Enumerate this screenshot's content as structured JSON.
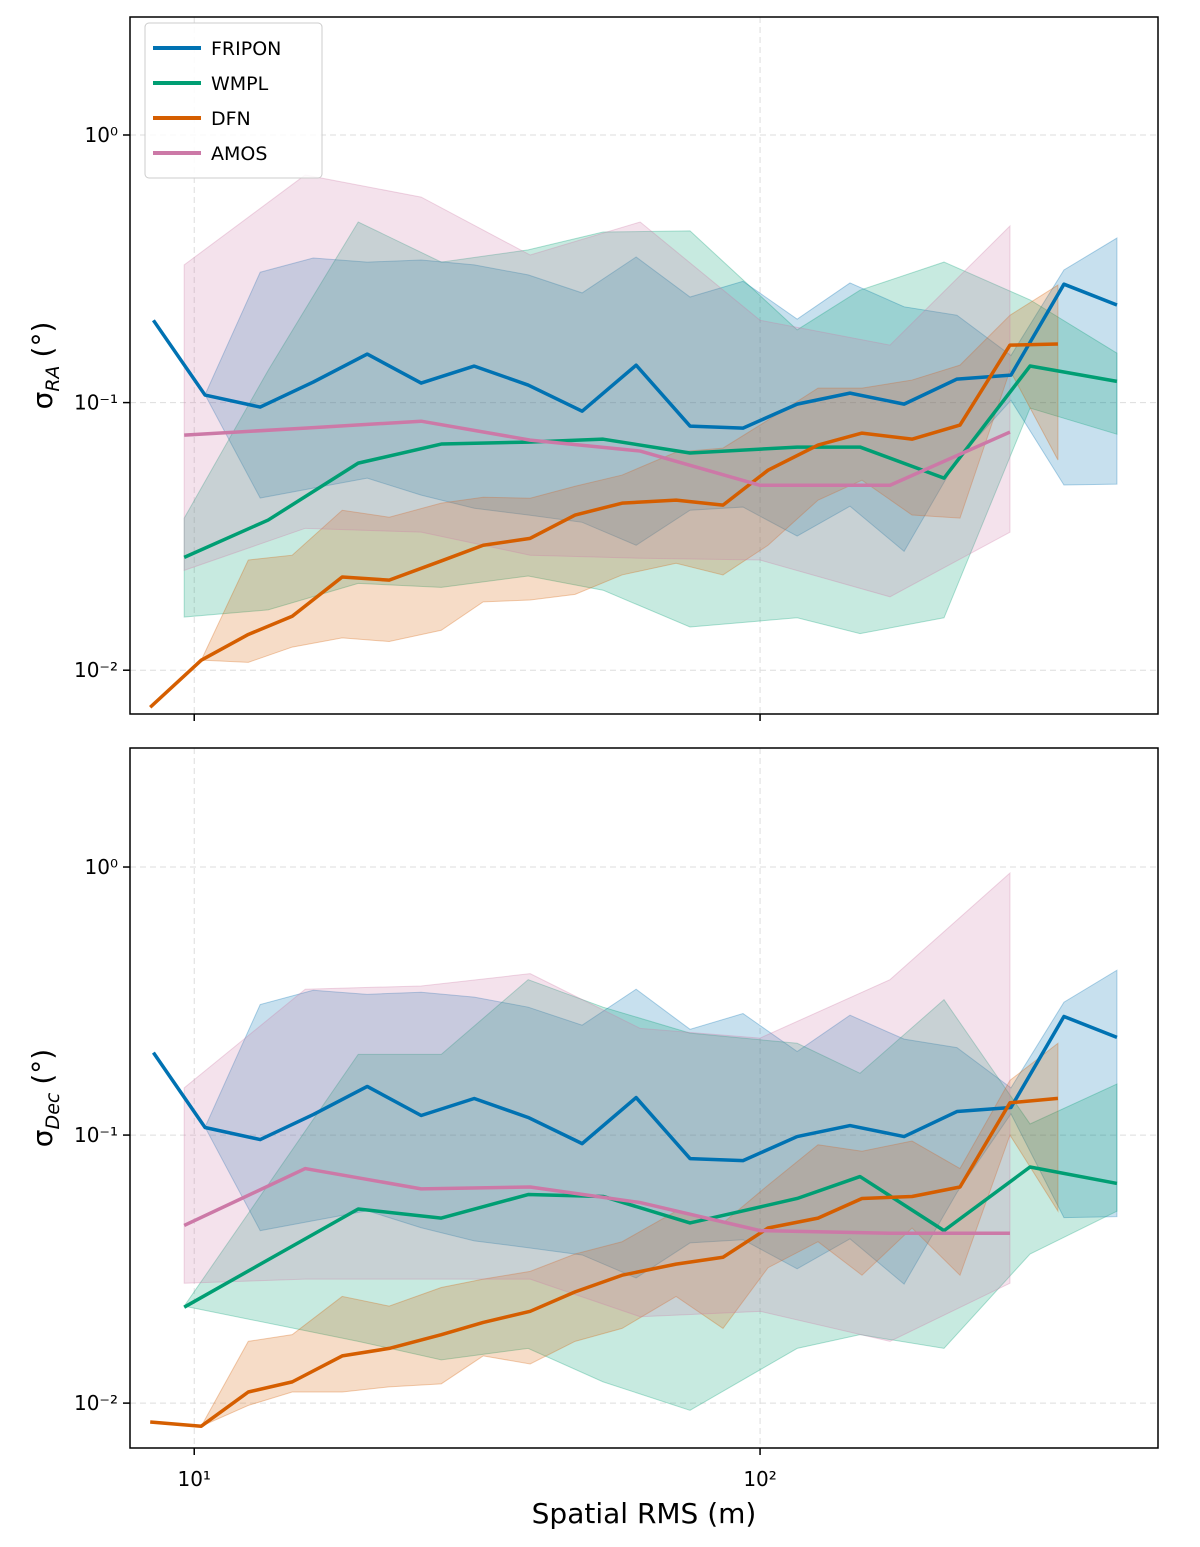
{
  "chart_data": [
    {
      "type": "line",
      "log": true,
      "grid": true,
      "legend": "upper left",
      "ylabel": {
        "symbol": "σ",
        "subscript": "RA",
        "unit": "(°)"
      },
      "xlim": [
        7.7,
        505
      ],
      "ylim": [
        0.00686,
        2.76
      ],
      "xticks": [
        10,
        100
      ],
      "yticks": [
        {
          "value": 0.01,
          "label": "10⁻²"
        },
        {
          "value": 0.1,
          "label": "10⁻¹"
        },
        {
          "value": 1,
          "label": "10⁰"
        }
      ],
      "series": [
        {
          "name": "FRIPON",
          "color": "#0072b2",
          "x": [
            8.47,
            10.45,
            13.08,
            16.23,
            20.22,
            25.18,
            31.25,
            38.92,
            48.48,
            60.39,
            75.2,
            93.3,
            116.3,
            144.2,
            179.7,
            222.8,
            277.6,
            344.4,
            427.3
          ],
          "values": [
            0.203,
            0.1067,
            0.0962,
            0.1193,
            0.1518,
            0.1183,
            0.1369,
            0.1163,
            0.0929,
            0.138,
            0.0817,
            0.0803,
            0.0987,
            0.1085,
            0.0987,
            0.1224,
            0.1267,
            0.277,
            0.2315
          ],
          "upper": [
            0.203,
            0.107,
            0.307,
            0.347,
            0.335,
            0.341,
            0.327,
            0.3,
            0.257,
            0.35,
            0.248,
            0.284,
            0.205,
            0.28,
            0.228,
            0.212,
            0.15,
            0.313,
            0.412
          ],
          "lower": [
            0.203,
            0.107,
            0.044,
            0.0479,
            0.0522,
            0.0451,
            0.0403,
            0.038,
            0.0357,
            0.0293,
            0.0396,
            0.0407,
            0.0317,
            0.041,
            0.0278,
            0.061,
            0.102,
            0.0492,
            0.0496
          ]
        },
        {
          "name": "WMPL",
          "color": "#009e73",
          "x": [
            9.6,
            13.51,
            19.49,
            27.33,
            38.92,
            52.8,
            75.2,
            116.3,
            150.2,
            211.4,
            300,
            427.3
          ],
          "values": [
            0.0264,
            0.0364,
            0.0594,
            0.07,
            0.0712,
            0.073,
            0.0648,
            0.0682,
            0.0682,
            0.0522,
            0.137,
            0.12
          ],
          "upper": [
            0.037,
            0.132,
            0.473,
            0.335,
            0.372,
            0.434,
            0.438,
            0.187,
            0.263,
            0.335,
            0.242,
            0.153
          ],
          "lower": [
            0.0158,
            0.0168,
            0.0211,
            0.0204,
            0.0225,
            0.0199,
            0.0145,
            0.0157,
            0.0137,
            0.0157,
            0.0954,
            0.0762
          ]
        },
        {
          "name": "DFN",
          "color": "#d55e00",
          "x": [
            8.36,
            10.29,
            12.46,
            14.9,
            18.26,
            22.11,
            27.33,
            32.41,
            39.24,
            47.11,
            57.04,
            71.06,
            86.0,
            103.3,
            126.6,
            151.4,
            185.6,
            225.6,
            276.5,
            336.1
          ],
          "values": [
            0.00727,
            0.0109,
            0.0136,
            0.0159,
            0.0223,
            0.0217,
            0.0256,
            0.0293,
            0.0311,
            0.038,
            0.0421,
            0.0432,
            0.0414,
            0.0559,
            0.0694,
            0.0769,
            0.073,
            0.0824,
            0.164,
            0.1655
          ],
          "upper": [
            0.00727,
            0.0109,
            0.0258,
            0.0269,
            0.0396,
            0.0373,
            0.0421,
            0.0443,
            0.0439,
            0.0487,
            0.0536,
            0.0653,
            0.0676,
            0.086,
            0.1133,
            0.1133,
            0.1214,
            0.138,
            0.212,
            0.275
          ],
          "lower": [
            0.00727,
            0.0109,
            0.0107,
            0.0122,
            0.0132,
            0.0128,
            0.0141,
            0.018,
            0.0183,
            0.0192,
            0.0227,
            0.0251,
            0.0227,
            0.0293,
            0.0432,
            0.0513,
            0.038,
            0.037,
            0.132,
            0.061
          ]
        },
        {
          "name": "AMOS",
          "color": "#cc79a7",
          "x": [
            9.6,
            15.71,
            25.18,
            39.24,
            61.4,
            100,
            169.7,
            276.5
          ],
          "values": [
            0.0756,
            0.0803,
            0.0852,
            0.0724,
            0.0659,
            0.0491,
            0.0491,
            0.0776
          ],
          "upper": [
            0.327,
            0.709,
            0.586,
            0.356,
            0.473,
            0.203,
            0.164,
            0.457
          ],
          "lower": [
            0.0236,
            0.0339,
            0.0328,
            0.0269,
            0.0262,
            0.0258,
            0.0188,
            0.0328
          ]
        }
      ]
    },
    {
      "type": "line",
      "log": true,
      "grid": true,
      "ylabel": {
        "symbol": "σ",
        "subscript": "Dec",
        "unit": "(°)"
      },
      "xlabel": "Spatial RMS (m)",
      "xlim": [
        7.7,
        505
      ],
      "ylim": [
        0.0068,
        2.78
      ],
      "xticks": [
        {
          "value": 10,
          "label": "10¹"
        },
        {
          "value": 100,
          "label": "10²"
        }
      ],
      "yticks": [
        {
          "value": 0.01,
          "label": "10⁻²"
        },
        {
          "value": 0.1,
          "label": "10⁻¹"
        },
        {
          "value": 1,
          "label": "10⁰"
        }
      ],
      "series": [
        {
          "color": "#0072b2",
          "x": [
            8.47,
            10.45,
            13.08,
            16.23,
            20.22,
            25.18,
            31.25,
            38.92,
            48.48,
            60.39,
            75.2,
            93.3,
            116.3,
            144.2,
            179.7,
            222.8,
            277.6,
            344.4,
            427.3
          ],
          "values": [
            0.203,
            0.1067,
            0.0962,
            0.1193,
            0.1518,
            0.1183,
            0.1369,
            0.1163,
            0.0929,
            0.138,
            0.0817,
            0.0803,
            0.0987,
            0.1085,
            0.0987,
            0.1224,
            0.1267,
            0.277,
            0.2315
          ],
          "upper": [
            0.203,
            0.107,
            0.307,
            0.347,
            0.335,
            0.341,
            0.327,
            0.3,
            0.257,
            0.35,
            0.248,
            0.284,
            0.205,
            0.28,
            0.228,
            0.212,
            0.15,
            0.313,
            0.412
          ],
          "lower": [
            0.203,
            0.107,
            0.044,
            0.0479,
            0.0522,
            0.0451,
            0.0403,
            0.038,
            0.0357,
            0.0293,
            0.0396,
            0.0407,
            0.0317,
            0.041,
            0.0278,
            0.061,
            0.12,
            0.0492,
            0.0496
          ]
        },
        {
          "color": "#009e73",
          "x": [
            9.6,
            19.49,
            27.33,
            38.92,
            52.8,
            75.2,
            116.3,
            150.2,
            211.4,
            300,
            427.3
          ],
          "values": [
            0.0228,
            0.053,
            0.049,
            0.06,
            0.059,
            0.047,
            0.058,
            0.07,
            0.044,
            0.076,
            0.066
          ],
          "upper": [
            0.023,
            0.2,
            0.2,
            0.38,
            0.3,
            0.24,
            0.22,
            0.17,
            0.32,
            0.11,
            0.155
          ],
          "lower": [
            0.023,
            0.017,
            0.0145,
            0.016,
            0.012,
            0.0094,
            0.016,
            0.018,
            0.016,
            0.036,
            0.052
          ]
        },
        {
          "color": "#d55e00",
          "x": [
            8.36,
            10.29,
            12.46,
            14.9,
            18.26,
            22.11,
            27.33,
            32.41,
            39.24,
            47.11,
            57.04,
            71.06,
            86.0,
            103.3,
            126.6,
            151.4,
            185.6,
            225.6,
            276.5,
            336.1
          ],
          "values": [
            0.0085,
            0.0082,
            0.011,
            0.012,
            0.015,
            0.016,
            0.018,
            0.02,
            0.022,
            0.026,
            0.03,
            0.033,
            0.035,
            0.045,
            0.049,
            0.058,
            0.059,
            0.064,
            0.132,
            0.137
          ],
          "upper": [
            0.0085,
            0.0082,
            0.017,
            0.018,
            0.025,
            0.023,
            0.027,
            0.029,
            0.031,
            0.036,
            0.04,
            0.052,
            0.047,
            0.065,
            0.092,
            0.087,
            0.095,
            0.075,
            0.16,
            0.22
          ],
          "lower": [
            0.0085,
            0.0082,
            0.0098,
            0.011,
            0.011,
            0.0115,
            0.0118,
            0.015,
            0.014,
            0.017,
            0.019,
            0.025,
            0.019,
            0.032,
            0.04,
            0.03,
            0.045,
            0.03,
            0.1,
            0.052
          ]
        },
        {
          "color": "#cc79a7",
          "x": [
            9.6,
            15.71,
            25.18,
            39.24,
            61.4,
            100,
            169.7,
            276.5
          ],
          "values": [
            0.046,
            0.075,
            0.063,
            0.064,
            0.056,
            0.044,
            0.043,
            0.043
          ],
          "upper": [
            0.15,
            0.35,
            0.36,
            0.4,
            0.25,
            0.23,
            0.38,
            0.95
          ],
          "lower": [
            0.028,
            0.029,
            0.029,
            0.029,
            0.021,
            0.022,
            0.017,
            0.028
          ]
        }
      ]
    }
  ]
}
